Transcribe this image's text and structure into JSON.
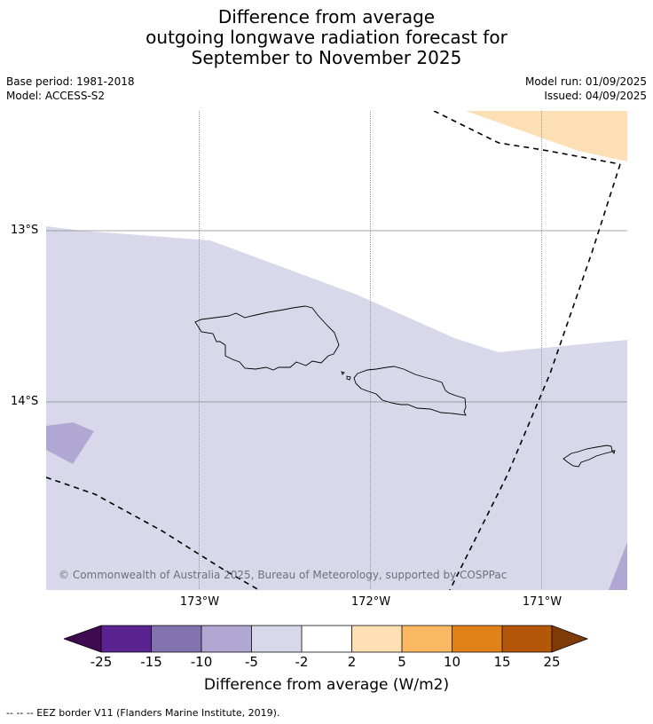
{
  "title": {
    "line1": "Difference from average",
    "line2": "outgoing longwave radiation forecast for",
    "line3": "September to November 2025"
  },
  "meta": {
    "base_period": "Base period: 1981-2018",
    "model": "Model: ACCESS-S2",
    "model_run": "Model run: 01/09/2025",
    "issued": "Issued: 04/09/2025"
  },
  "map": {
    "copyright": "© Commonwealth of Australia 2025, Bureau of Meteorology, supported by COSPPac",
    "lat_labels": [
      "13°S",
      "14°S"
    ],
    "lon_labels": [
      "173°W",
      "172°W",
      "171°W"
    ]
  },
  "colorbar": {
    "title": "Difference from average (W/m2)",
    "ticks": [
      "-25",
      "-15",
      "-10",
      "-5",
      "-2",
      "2",
      "5",
      "10",
      "15",
      "25"
    ],
    "colors": {
      "below_min": "#3f0a50",
      "b1": "#5b2390",
      "b2": "#8273b0",
      "b3": "#b0a8d2",
      "b4": "#d8d8ea",
      "b5": "#ffffff",
      "b6": "#fddfb5",
      "b7": "#fbb863",
      "b8": "#e08217",
      "b9": "#b55708",
      "above_max": "#7e3b08"
    }
  },
  "footnote": "--  --  -- EEZ border V11 (Flanders Marine Institute, 2019)."
}
